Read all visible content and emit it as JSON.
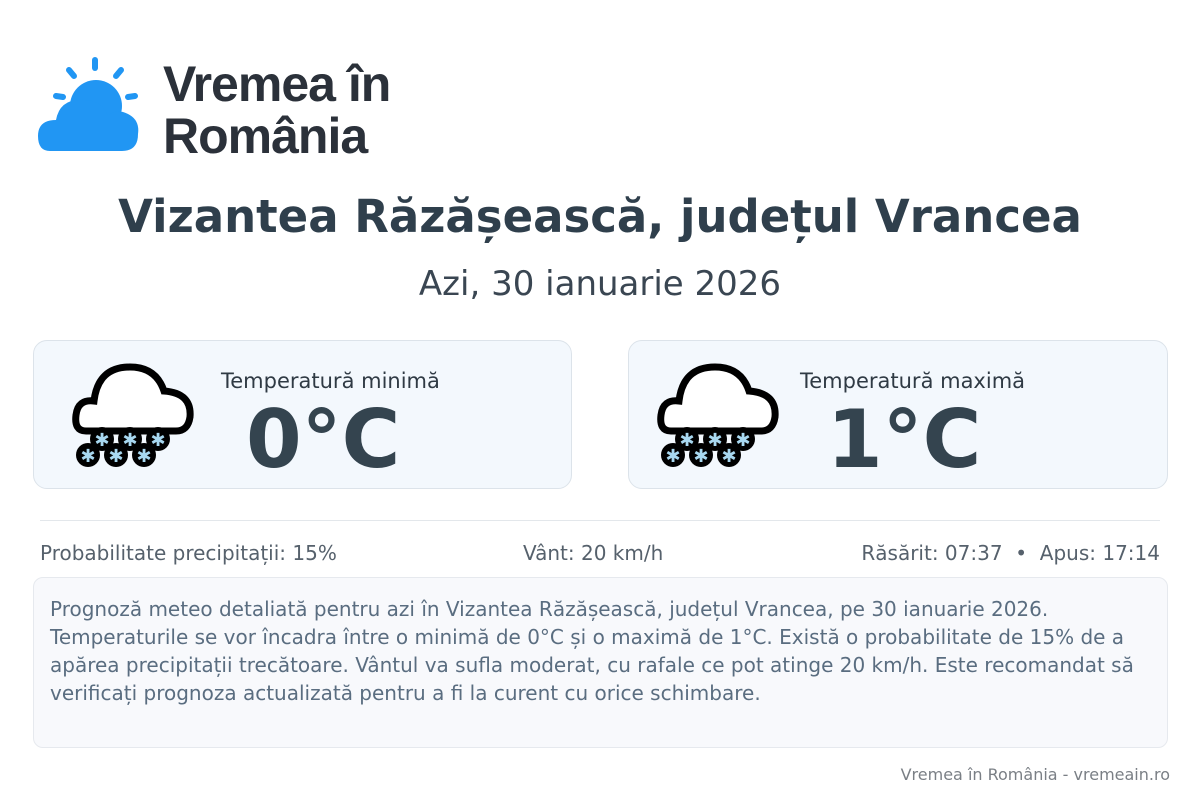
{
  "brand": {
    "line1": "Vremea în",
    "line2": "România",
    "logo_color": "#2196f3"
  },
  "title": "Vizantea Răzășească, județul Vrancea",
  "date": "Azi, 30 ianuarie 2026",
  "cards": [
    {
      "label": "Temperatură minimă",
      "value": "0°C",
      "icon": "snow-cloud-icon"
    },
    {
      "label": "Temperatură maximă",
      "value": "1°C",
      "icon": "snow-cloud-icon"
    }
  ],
  "info": {
    "precip": "Probabilitate precipitații: 15%",
    "wind": "Vânt: 20 km/h",
    "sun": "Răsărit: 07:37  •  Apus: 17:14"
  },
  "description": "Prognoză meteo detaliată pentru azi în Vizantea Răzășească, județul Vrancea, pe 30 ianuarie 2026. Temperaturile se vor încadra între o minimă de 0°C și o maximă de 1°C. Există o probabilitate de 15% de a apărea precipitații trecătoare. Vântul va sufla moderat, cu rafale ce pot atinge 20 km/h. Este recomandat să verificați prognoza actualizată pentru a fi la curent cu orice schimbare.",
  "footer": "Vremea în România - vremeain.ro"
}
